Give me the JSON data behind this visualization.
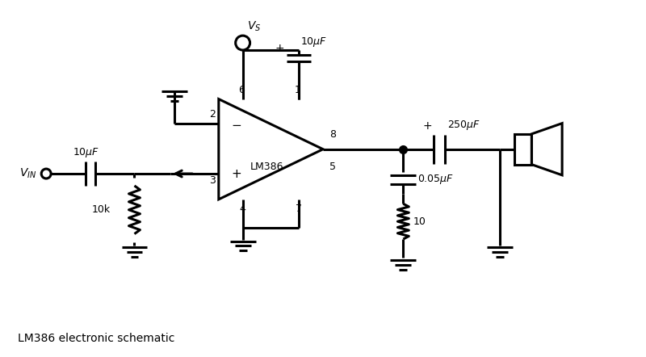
{
  "title": "LM386 electronic schematic",
  "bg_color": "#ffffff",
  "line_color": "#000000",
  "line_width": 2.2,
  "font_size": 10
}
